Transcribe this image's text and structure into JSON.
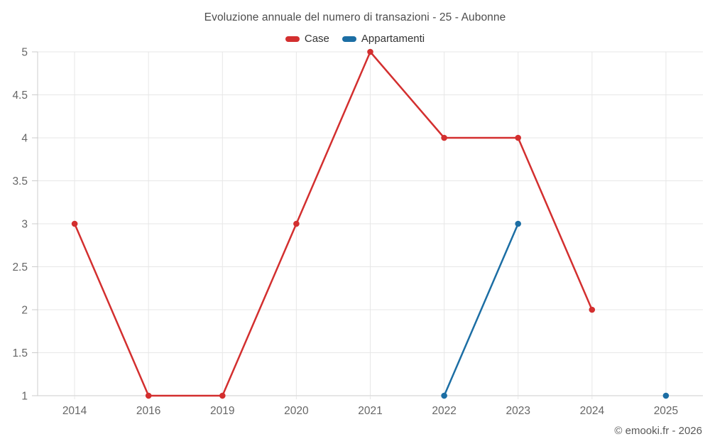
{
  "chart_data": {
    "type": "line",
    "title": "Evoluzione annuale del numero di transazioni - 25 - Aubonne",
    "categories": [
      "2014",
      "2016",
      "2019",
      "2020",
      "2021",
      "2022",
      "2023",
      "2024",
      "2025"
    ],
    "series": [
      {
        "name": "Case",
        "color": "#d32f2f",
        "values": [
          3,
          1,
          1,
          3,
          5,
          4,
          4,
          2,
          null
        ]
      },
      {
        "name": "Appartamenti",
        "color": "#1c6ea4",
        "values": [
          null,
          null,
          null,
          null,
          null,
          1,
          3,
          null,
          1
        ]
      }
    ],
    "ylim": [
      1,
      5
    ],
    "yticks": [
      1,
      1.5,
      2,
      2.5,
      3,
      3.5,
      4,
      4.5,
      5
    ],
    "xlabel": "",
    "ylabel": "",
    "grid": true,
    "legend_position": "top",
    "footer": "© emooki.fr - 2026"
  },
  "colors": {
    "grid": "#e7e7e7",
    "axis": "#cccccc",
    "tick_label": "#666666"
  }
}
